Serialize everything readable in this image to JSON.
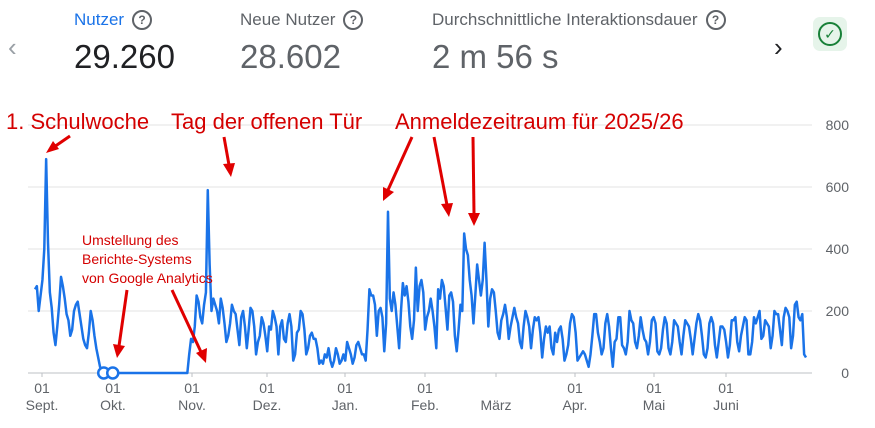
{
  "metrics": {
    "prev_icon": "chevron-left-icon",
    "next_icon": "chevron-right-icon",
    "items": [
      {
        "label": "Nutzer",
        "value": "29.260",
        "active": true
      },
      {
        "label": "Neue Nutzer",
        "value": "28.602",
        "active": false
      },
      {
        "label": "Durchschnittliche Interaktionsdauer",
        "value": "2 m 56 s",
        "active": false
      }
    ],
    "help_icon": "?",
    "status_icon": "check-circle-icon",
    "accent_color": "#1a73e8",
    "status_color": "#188038"
  },
  "chart_data": {
    "type": "line",
    "ylim": [
      0,
      800
    ],
    "yticks": [
      "800",
      "600",
      "400",
      "200",
      "0"
    ],
    "ytick_values": [
      800,
      600,
      400,
      200,
      0
    ],
    "x_ticks": [
      {
        "day": "01",
        "month": "Sept."
      },
      {
        "day": "01",
        "month": "Okt."
      },
      {
        "day": "01",
        "month": "Nov."
      },
      {
        "day": "01",
        "month": "Dez."
      },
      {
        "day": "01",
        "month": "Jan."
      },
      {
        "day": "01",
        "month": "Feb."
      },
      {
        "day": "",
        "month": "März"
      },
      {
        "day": "01",
        "month": "Apr."
      },
      {
        "day": "01",
        "month": "Mai"
      },
      {
        "day": "01",
        "month": "Juni"
      }
    ],
    "grid": true,
    "line_color": "#1a73e8",
    "series": [
      {
        "values": [
          270,
          280,
          200,
          250,
          300,
          400,
          690,
          420,
          260,
          210,
          130,
          90,
          150,
          220,
          310,
          280,
          240,
          190,
          170,
          120,
          140,
          200,
          220,
          230,
          190,
          150,
          110,
          90,
          80,
          130,
          200,
          170,
          120,
          80,
          50,
          20,
          10,
          0,
          0,
          0,
          0,
          0,
          0,
          0,
          0,
          0,
          0,
          0,
          0,
          0,
          0,
          0,
          0,
          0,
          0,
          0,
          0,
          0,
          0,
          0,
          0,
          0,
          0,
          0,
          0,
          0,
          0,
          0,
          0,
          0,
          0,
          0,
          0,
          0,
          0,
          0,
          0,
          0,
          0,
          0,
          0,
          0,
          0,
          60,
          110,
          100,
          150,
          250,
          230,
          180,
          160,
          220,
          260,
          590,
          350,
          200,
          240,
          220,
          200,
          160,
          240,
          210,
          160,
          100,
          120,
          160,
          220,
          200,
          190,
          140,
          90,
          180,
          200,
          150,
          80,
          140,
          210,
          200,
          150,
          60,
          100,
          120,
          180,
          160,
          120,
          70,
          150,
          140,
          200,
          180,
          150,
          60,
          150,
          170,
          110,
          100,
          160,
          190,
          150,
          40,
          60,
          130,
          140,
          200,
          190,
          140,
          60,
          80,
          120,
          130,
          110,
          110,
          80,
          30,
          40,
          30,
          60,
          50,
          80,
          40,
          20,
          40,
          80,
          60,
          30,
          40,
          60,
          40,
          100,
          80,
          60,
          30,
          50,
          90,
          100,
          80,
          60,
          60,
          40,
          140,
          270,
          250,
          250,
          220,
          120,
          200,
          210,
          180,
          70,
          160,
          520,
          240,
          200,
          260,
          220,
          150,
          80,
          200,
          290,
          250,
          280,
          230,
          150,
          110,
          170,
          340,
          200,
          280,
          300,
          260,
          140,
          180,
          200,
          240,
          200,
          150,
          80,
          270,
          240,
          300,
          280,
          210,
          140,
          250,
          260,
          230,
          120,
          70,
          140,
          220,
          200,
          450,
          400,
          380,
          300,
          250,
          160,
          250,
          350,
          300,
          250,
          300,
          420,
          300,
          150,
          240,
          270,
          260,
          200,
          130,
          110,
          170,
          190,
          220,
          180,
          110,
          150,
          180,
          210,
          180,
          160,
          100,
          80,
          150,
          200,
          180,
          150,
          80,
          140,
          180,
          170,
          180,
          130,
          50,
          110,
          150,
          130,
          150,
          80,
          60,
          130,
          100,
          140,
          150,
          110,
          40,
          60,
          90,
          160,
          190,
          180,
          130,
          40,
          50,
          60,
          70,
          60,
          40,
          20,
          60,
          120,
          190,
          190,
          130,
          100,
          60,
          80,
          160,
          190,
          150,
          80,
          20,
          100,
          110,
          180,
          180,
          90,
          80,
          60,
          100,
          200,
          170,
          160,
          100,
          80,
          120,
          180,
          140,
          110,
          100,
          60,
          100,
          170,
          180,
          160,
          70,
          60,
          80,
          140,
          180,
          160,
          80,
          60,
          100,
          170,
          160,
          150,
          100,
          60,
          120,
          170,
          160,
          150,
          110,
          60,
          110,
          160,
          190,
          170,
          120,
          60,
          50,
          80,
          160,
          180,
          160,
          90,
          50,
          100,
          150,
          150,
          140,
          100,
          50,
          90,
          170,
          170,
          180,
          100,
          70,
          120,
          150,
          180,
          170,
          60,
          60,
          100,
          180,
          160,
          180,
          200,
          110,
          120,
          170,
          160,
          150,
          80,
          120,
          200,
          190,
          190,
          140,
          90,
          180,
          210,
          200,
          180,
          80,
          120,
          220,
          230,
          180,
          170,
          190,
          60,
          50
        ]
      }
    ]
  },
  "annotations": {
    "schulwoche": "1. Schulwoche",
    "offene_tuer": "Tag der offenen Tür",
    "anmeldung": "Anmeldezeitraum für 2025/26",
    "umstellung_line1": "Umstellung des",
    "umstellung_line2": "Berichte-Systems",
    "umstellung_line3": "von Google Analytics",
    "color": "#d40000"
  }
}
